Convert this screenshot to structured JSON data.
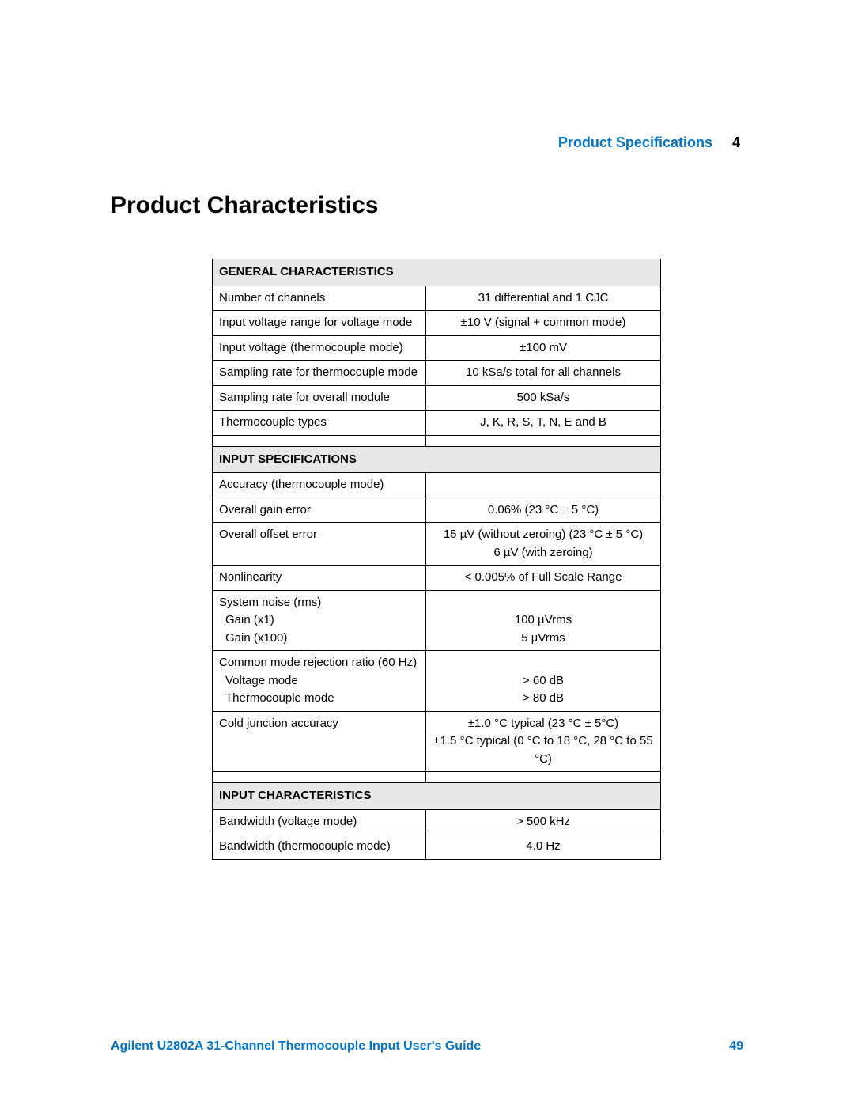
{
  "header": {
    "chapter_title": "Product Specifications",
    "chapter_number": "4"
  },
  "section_title": "Product Characteristics",
  "spec_table": {
    "columns_ratio": [
      0.47,
      0.53
    ],
    "border_color": "#000000",
    "header_bg": "#e8e8e8",
    "text_color": "#000000",
    "font_size_pt": 11,
    "sections": [
      {
        "title": "GENERAL CHARACTERISTICS",
        "rows": [
          {
            "param": "Number of channels",
            "value": "31 differential and 1 CJC"
          },
          {
            "param": "Input voltage range for voltage mode",
            "value": "±10 V (signal + common mode)"
          },
          {
            "param": "Input voltage (thermocouple mode)",
            "value": "±100 mV"
          },
          {
            "param": "Sampling rate for thermocouple mode",
            "value": "10 kSa/s total for all channels"
          },
          {
            "param": "Sampling rate for overall module",
            "value": "500 kSa/s"
          },
          {
            "param": "Thermocouple types",
            "value": "J, K, R, S, T, N, E and B"
          }
        ]
      },
      {
        "title": "INPUT SPECIFICATIONS",
        "rows": [
          {
            "param": "Accuracy (thermocouple mode)",
            "value": ""
          },
          {
            "param": "Overall gain error",
            "value": "0.06% (23 °C ± 5 °C)"
          },
          {
            "param": "Overall offset error",
            "value": "15 µV (without zeroing) (23 °C ± 5 °C)\n6 µV (with zeroing)"
          },
          {
            "param": "Nonlinearity",
            "value": "< 0.005% of Full Scale Range"
          },
          {
            "param": "System noise (rms)\n Gain (x1)\n Gain (x100)",
            "value": "\n100 µVrms\n5 µVrms"
          },
          {
            "param": "Common mode rejection ratio (60 Hz)\n Voltage mode\n Thermocouple mode",
            "value": "\n> 60 dB\n> 80 dB"
          },
          {
            "param": "Cold junction accuracy",
            "value": "±1.0 °C typical (23 °C ± 5°C)\n±1.5 °C typical (0 °C to 18 °C, 28 °C to 55 °C)"
          }
        ]
      },
      {
        "title": "INPUT CHARACTERISTICS",
        "rows": [
          {
            "param": "Bandwidth (voltage mode)",
            "value": "> 500 kHz"
          },
          {
            "param": "Bandwidth (thermocouple mode)",
            "value": "4.0 Hz"
          }
        ]
      }
    ]
  },
  "footer": {
    "guide_title": "Agilent U2802A 31-Channel Thermocouple Input User's Guide",
    "page_number": "49",
    "accent_color": "#0073cf"
  }
}
